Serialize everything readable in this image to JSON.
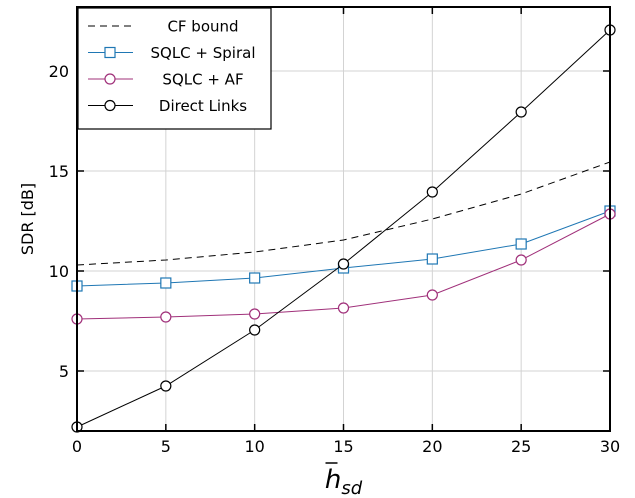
{
  "chart_data": {
    "type": "line",
    "x": [
      0,
      5,
      10,
      15,
      20,
      25,
      30
    ],
    "xticks": [
      0,
      5,
      10,
      15,
      20,
      25,
      30
    ],
    "yticks": [
      5,
      10,
      15,
      20
    ],
    "xlim": [
      0,
      30
    ],
    "ylim": [
      2.0,
      23.2
    ],
    "xlabel_main": "h",
    "xlabel_sub": "sd",
    "ylabel": "SDR [dB]",
    "grid": true,
    "legend_position": "top-left",
    "series": [
      {
        "name": "CF bound",
        "style": "dashed",
        "marker": "none",
        "color": "#000000",
        "values": [
          10.3,
          10.55,
          10.95,
          11.55,
          12.6,
          13.85,
          15.45
        ]
      },
      {
        "name": "SQLC + Spiral",
        "style": "solid",
        "marker": "square",
        "color": "#1f77b4",
        "values": [
          9.25,
          9.4,
          9.65,
          10.15,
          10.6,
          11.35,
          13.0
        ]
      },
      {
        "name": "SQLC + AF",
        "style": "solid",
        "marker": "circle",
        "color": "#a0307a",
        "values": [
          7.6,
          7.7,
          7.85,
          8.15,
          8.8,
          10.55,
          12.85
        ]
      },
      {
        "name": "Direct Links",
        "style": "solid",
        "marker": "circle",
        "color": "#000000",
        "values": [
          2.2,
          4.25,
          7.05,
          10.35,
          13.95,
          17.95,
          22.05
        ]
      }
    ]
  }
}
